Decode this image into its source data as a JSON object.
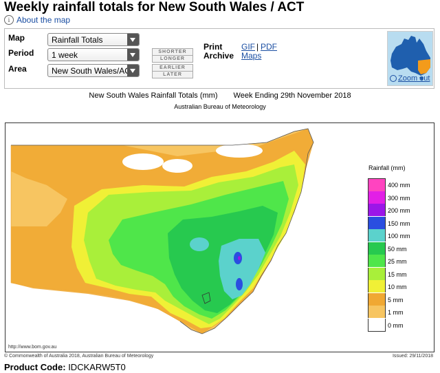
{
  "page": {
    "title": "Weekly rainfall totals for New South Wales / ACT",
    "about_link": "About the map"
  },
  "controls": {
    "map_label": "Map",
    "map_value": "Rainfall Totals",
    "period_label": "Period",
    "period_value": "1 week",
    "area_label": "Area",
    "area_value": "New South Wales/ACT",
    "shorter": "SHORTER",
    "longer": "LONGER",
    "earlier": "EARLIER",
    "later": "LATER",
    "print_label": "Print",
    "archive_label": "Archive",
    "gif_link": "GIF",
    "pipe": "|",
    "pdf_link": "PDF",
    "maps_link": "Maps",
    "zoom_out": "Zoom out"
  },
  "map": {
    "title_left": "New South Wales Rainfall Totals (mm)",
    "title_right": "Week Ending 29th November 2018",
    "subtitle": "Australian Bureau of Meteorology",
    "source_url": "http://www.bom.gov.au",
    "legend_title": "Rainfall (mm)",
    "legend": [
      {
        "label": "400 mm",
        "color": "#ff44c0"
      },
      {
        "label": "300 mm",
        "color": "#e21fe6"
      },
      {
        "label": "200 mm",
        "color": "#9b16e8"
      },
      {
        "label": "150 mm",
        "color": "#2a4ee0"
      },
      {
        "label": "100 mm",
        "color": "#5bd2cc"
      },
      {
        "label": "50 mm",
        "color": "#27c94f"
      },
      {
        "label": "25 mm",
        "color": "#4fe64a"
      },
      {
        "label": "15 mm",
        "color": "#a9ef3a"
      },
      {
        "label": "10 mm",
        "color": "#f0f036"
      },
      {
        "label": "5 mm",
        "color": "#f0a833"
      },
      {
        "label": "1 mm",
        "color": "#f7c561"
      },
      {
        "label": "0 mm",
        "color": "#ffffff"
      }
    ],
    "copyright": "© Commonwealth of Australia 2018, Australian Bureau of Meteorology",
    "issued": "Issued: 29/11/2018"
  },
  "footer": {
    "product_code_label": "Product Code:",
    "product_code": "IDCKARW5T0"
  }
}
